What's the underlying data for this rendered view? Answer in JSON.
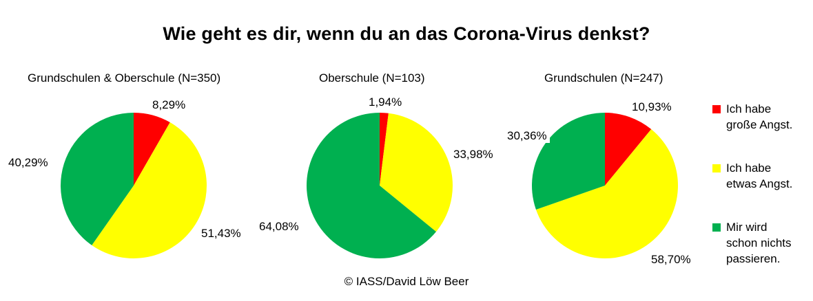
{
  "chart_data": {
    "type": "pie",
    "title": "Wie geht es dir, wenn du an das Corona-Virus denkst?",
    "legend_position": "right",
    "categories": [
      "Ich habe große Angst.",
      "Ich habe etwas Angst.",
      "Mir wird schon nichts passieren."
    ],
    "colors": [
      "#ff0000",
      "#ffff00",
      "#00b050"
    ],
    "charts": [
      {
        "subtitle": "Grundschulen  & Oberschule  (N=350)",
        "values": [
          8.29,
          51.43,
          40.29
        ],
        "labels": [
          "8,29%",
          "51,43%",
          "40,29%"
        ]
      },
      {
        "subtitle": "Oberschule  (N=103)",
        "values": [
          1.94,
          33.98,
          64.08
        ],
        "labels": [
          "1,94%",
          "33,98%",
          "64,08%"
        ]
      },
      {
        "subtitle": "Grundschulen (N=247)",
        "values": [
          10.93,
          58.7,
          30.36
        ],
        "labels": [
          "10,93%",
          "58,70%",
          "30,36%"
        ]
      }
    ]
  },
  "legend": [
    {
      "label": "Ich habe\ngroße Angst.",
      "color": "#ff0000"
    },
    {
      "label": "Ich habe\netwas Angst.",
      "color": "#ffff00"
    },
    {
      "label": "Mir wird\nschon nichts\npassieren.",
      "color": "#00b050"
    }
  ],
  "credit": "© IASS/David Löw Beer"
}
